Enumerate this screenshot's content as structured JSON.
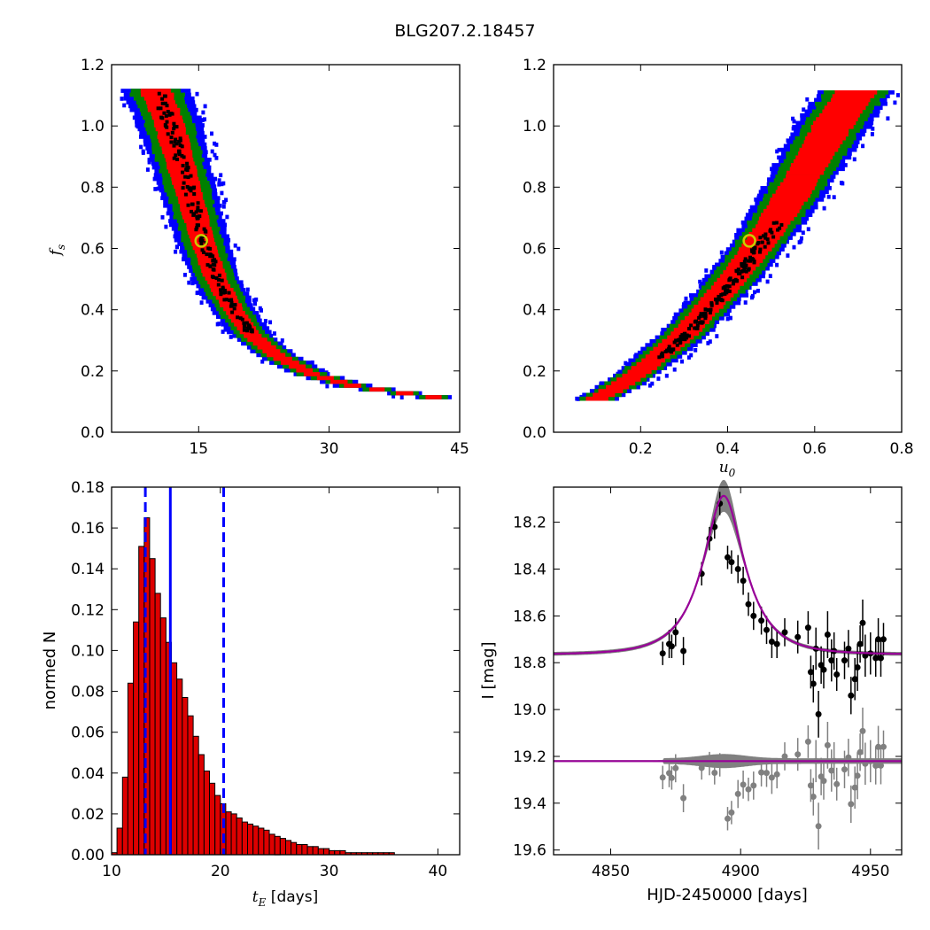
{
  "figure_title": "BLG207.2.18457",
  "colors": {
    "sigma1": "#000000",
    "sigma2": "#ff0000",
    "sigma3": "#008000",
    "sigma4": "#0000ff",
    "marker": "#cccc00",
    "hist_fill": "#dd0000",
    "hist_line": "#0000ff",
    "model": "#990099",
    "band": "#808080",
    "data_black": "#000000",
    "data_grey": "#808080"
  },
  "chart_data": [
    {
      "type": "scatter",
      "panel": "top-left",
      "title": "",
      "xlabel": "",
      "ylabel": "f_s",
      "ylabel_main": "f",
      "ylabel_sub": "s",
      "xlim": [
        5,
        45
      ],
      "ylim": [
        0.0,
        1.2
      ],
      "xticks": [
        15,
        30,
        45
      ],
      "xtick_labels": [
        "15",
        "30",
        "45"
      ],
      "yticks": [
        0.0,
        0.2,
        0.4,
        0.6,
        0.8,
        1.0,
        1.2
      ],
      "ytick_labels": [
        "0.0",
        "0.2",
        "0.4",
        "0.6",
        "0.8",
        "1.0",
        "1.2"
      ],
      "description": "MCMC density of f_s vs t_E, confidence regions (black/red/green/blue)",
      "best_fit": {
        "x": 15.3,
        "y": 0.625
      },
      "ridge": {
        "x": [
          10.0,
          11.5,
          12.5,
          13.5,
          14.5,
          15.5,
          17.0,
          19.0,
          21.0,
          24.0,
          28.0,
          33.0,
          38.0,
          42.0
        ],
        "y": [
          1.12,
          1.02,
          0.92,
          0.82,
          0.72,
          0.62,
          0.5,
          0.4,
          0.32,
          0.25,
          0.19,
          0.15,
          0.13,
          0.115
        ]
      },
      "band_widths": {
        "sigma1": 0.5,
        "sigma2": 1.5,
        "sigma3": 2.5,
        "sigma4": 3.3
      }
    },
    {
      "type": "scatter",
      "panel": "top-right",
      "title": "",
      "xlabel": "u_0",
      "xlabel_main": "u",
      "xlabel_sub": "0",
      "ylabel": "",
      "xlim": [
        0.0,
        0.8
      ],
      "ylim": [
        0.0,
        1.2
      ],
      "xticks": [
        0.2,
        0.4,
        0.6,
        0.8
      ],
      "xtick_labels": [
        "0.2",
        "0.4",
        "0.6",
        "0.8"
      ],
      "yticks": [
        0.0,
        0.2,
        0.4,
        0.6,
        0.8,
        1.0,
        1.2
      ],
      "ytick_labels": [
        "0.0",
        "0.2",
        "0.4",
        "0.6",
        "0.8",
        "1.0",
        "1.2"
      ],
      "description": "MCMC density of f_s vs u_0, confidence regions (black/red/green/blue)",
      "best_fit": {
        "x": 0.45,
        "y": 0.625
      },
      "ridge": {
        "x": [
          0.1,
          0.15,
          0.2,
          0.25,
          0.3,
          0.35,
          0.4,
          0.45,
          0.5,
          0.55,
          0.6,
          0.65,
          0.7
        ],
        "y": [
          0.11,
          0.15,
          0.2,
          0.26,
          0.32,
          0.4,
          0.48,
          0.57,
          0.67,
          0.78,
          0.9,
          1.02,
          1.12
        ]
      },
      "band_widths": {
        "sigma1": 0.012,
        "sigma2": 0.04,
        "sigma3": 0.06,
        "sigma4": 0.075
      }
    },
    {
      "type": "bar",
      "panel": "bottom-left",
      "title": "",
      "xlabel": "t_E  [days]",
      "xlabel_main": "t",
      "xlabel_sub": "E",
      "xlabel_unit": "  [days]",
      "ylabel": "normed N",
      "xlim": [
        10,
        42
      ],
      "ylim": [
        0.0,
        0.18
      ],
      "xticks": [
        10,
        20,
        30,
        40
      ],
      "xtick_labels": [
        "10",
        "20",
        "30",
        "40"
      ],
      "yticks": [
        0.0,
        0.02,
        0.04,
        0.06,
        0.08,
        0.1,
        0.12,
        0.14,
        0.16,
        0.18
      ],
      "ytick_labels": [
        "0.00",
        "0.02",
        "0.04",
        "0.06",
        "0.08",
        "0.10",
        "0.12",
        "0.14",
        "0.16",
        "0.18"
      ],
      "bin_start": 10.25,
      "bin_width": 0.5,
      "values": [
        0.001,
        0.013,
        0.038,
        0.084,
        0.114,
        0.151,
        0.165,
        0.145,
        0.128,
        0.116,
        0.104,
        0.094,
        0.086,
        0.077,
        0.068,
        0.058,
        0.049,
        0.041,
        0.035,
        0.029,
        0.025,
        0.021,
        0.02,
        0.018,
        0.016,
        0.015,
        0.014,
        0.013,
        0.012,
        0.01,
        0.009,
        0.008,
        0.007,
        0.006,
        0.005,
        0.005,
        0.004,
        0.004,
        0.003,
        0.003,
        0.002,
        0.002,
        0.002,
        0.001,
        0.001,
        0.001,
        0.001,
        0.001,
        0.001,
        0.001,
        0.001,
        0.001,
        0.0,
        0.0,
        0.0,
        0.0,
        0.0,
        0.0,
        0.0,
        0.0,
        0.0,
        0.0
      ],
      "vlines": [
        {
          "x": 15.4,
          "style": "solid"
        },
        {
          "x": 13.1,
          "style": "dashed"
        },
        {
          "x": 20.3,
          "style": "dashed"
        }
      ]
    },
    {
      "type": "scatter",
      "panel": "bottom-right",
      "title": "",
      "xlabel": "HJD-2450000 [days]",
      "ylabel": "I [mag]",
      "xlim": [
        4828,
        4962
      ],
      "ylim": [
        19.62,
        18.05
      ],
      "xticks": [
        4850,
        4900,
        4950
      ],
      "xtick_labels": [
        "4850",
        "4900",
        "4950"
      ],
      "yticks": [
        18.2,
        18.4,
        18.6,
        18.8,
        19.0,
        19.2,
        19.4,
        19.6
      ],
      "ytick_labels": [
        "18.2",
        "18.4",
        "18.6",
        "18.8",
        "19.0",
        "19.2",
        "19.4",
        "19.6"
      ],
      "model": {
        "t0": 4893.5,
        "tE": 15.4,
        "u0": 0.45,
        "fs": 0.625,
        "base_mag": 18.765,
        "resid_offset": 19.22
      },
      "light_curve_points": {
        "t": [
          4870.0,
          4872.5,
          4873.5,
          4875.0,
          4878.0,
          4885.0,
          4888.0,
          4890.0,
          4892.0,
          4895.0,
          4896.5,
          4899.0,
          4901.0,
          4903.0,
          4905.0,
          4908.0,
          4910.0,
          4912.0,
          4914.0,
          4917.0,
          4922.0,
          4926.0,
          4927.0,
          4928.0,
          4929.0,
          4930.0,
          4931.0,
          4932.0,
          4933.5,
          4935.0,
          4936.0,
          4937.0,
          4940.0,
          4941.5,
          4942.5,
          4944.0,
          4945.0,
          4946.0,
          4947.0,
          4948.0,
          4950.0,
          4952.0,
          4953.0,
          4954.0,
          4955.0
        ],
        "mag": [
          18.76,
          18.72,
          18.73,
          18.67,
          18.75,
          18.42,
          18.27,
          18.22,
          18.12,
          18.35,
          18.37,
          18.4,
          18.45,
          18.55,
          18.6,
          18.62,
          18.66,
          18.71,
          18.72,
          18.67,
          18.69,
          18.65,
          18.84,
          18.89,
          18.74,
          19.02,
          18.81,
          18.83,
          18.68,
          18.79,
          18.75,
          18.85,
          18.79,
          18.74,
          18.94,
          18.87,
          18.82,
          18.72,
          18.63,
          18.77,
          18.76,
          18.78,
          18.7,
          18.78,
          18.7
        ],
        "err": [
          0.05,
          0.06,
          0.05,
          0.06,
          0.06,
          0.05,
          0.05,
          0.05,
          0.05,
          0.05,
          0.05,
          0.06,
          0.06,
          0.05,
          0.06,
          0.06,
          0.06,
          0.07,
          0.06,
          0.06,
          0.07,
          0.07,
          0.07,
          0.08,
          0.09,
          0.1,
          0.08,
          0.08,
          0.1,
          0.09,
          0.08,
          0.07,
          0.08,
          0.08,
          0.08,
          0.09,
          0.1,
          0.08,
          0.1,
          0.09,
          0.09,
          0.08,
          0.09,
          0.08,
          0.07
        ]
      }
    }
  ]
}
